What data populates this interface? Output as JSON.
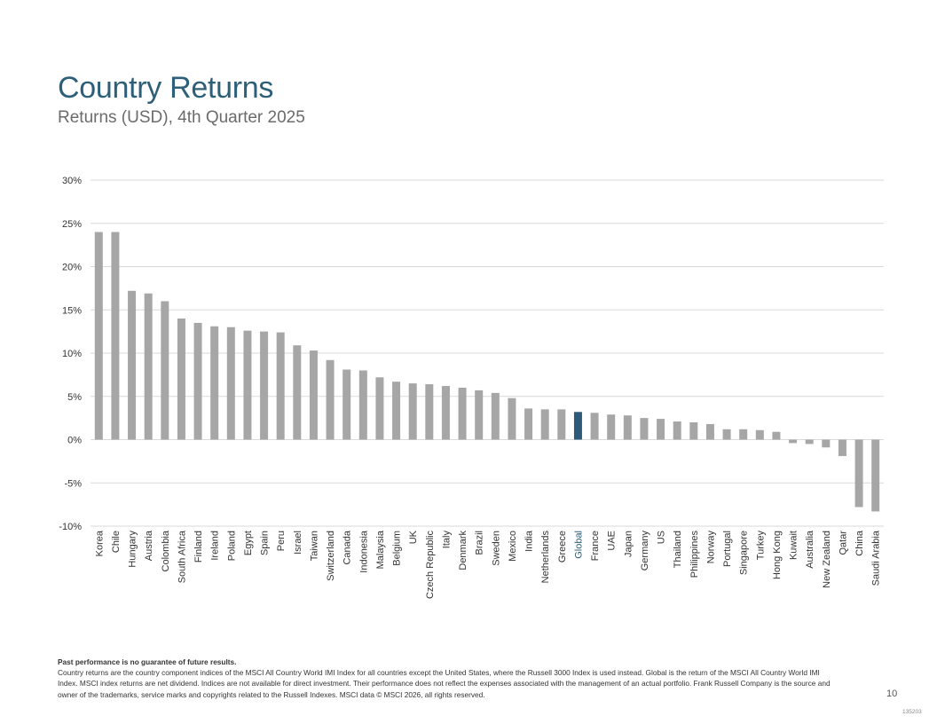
{
  "header": {
    "title": "Country Returns",
    "subtitle": "Returns (USD), 4th Quarter 2025"
  },
  "colors": {
    "bar": "#a6a6a6",
    "highlight": "#2d5a78",
    "grid": "#d9d9d9",
    "title": "#2e5f79"
  },
  "chart_data": {
    "type": "bar",
    "title": "",
    "xlabel": "",
    "ylabel": "",
    "ylim": [
      -10,
      30
    ],
    "yticks": [
      30,
      25,
      20,
      15,
      10,
      5,
      0,
      -5,
      -10
    ],
    "ytick_labels": [
      "30%",
      "25%",
      "20%",
      "15%",
      "10%",
      "5%",
      "0%",
      "-5%",
      "-10%"
    ],
    "grid": true,
    "highlight_category": "Global",
    "categories": [
      "Korea",
      "Chile",
      "Hungary",
      "Austria",
      "Colombia",
      "South Africa",
      "Finland",
      "Ireland",
      "Poland",
      "Egypt",
      "Spain",
      "Peru",
      "Israel",
      "Taiwan",
      "Switzerland",
      "Canada",
      "Indonesia",
      "Malaysia",
      "Belgium",
      "UK",
      "Czech Republic",
      "Italy",
      "Denmark",
      "Brazil",
      "Sweden",
      "Mexico",
      "India",
      "Netherlands",
      "Greece",
      "Global",
      "France",
      "UAE",
      "Japan",
      "Germany",
      "US",
      "Thailand",
      "Philippines",
      "Norway",
      "Portugal",
      "Singapore",
      "Turkey",
      "Hong Kong",
      "Kuwait",
      "Australia",
      "New Zealand",
      "Qatar",
      "China",
      "Saudi Arabia"
    ],
    "values": [
      24.0,
      24.0,
      17.2,
      16.9,
      16.0,
      14.0,
      13.5,
      13.1,
      13.0,
      12.6,
      12.5,
      12.4,
      10.9,
      10.3,
      9.2,
      8.1,
      8.0,
      7.2,
      6.7,
      6.5,
      6.4,
      6.2,
      6.0,
      5.7,
      5.4,
      4.8,
      3.6,
      3.5,
      3.5,
      3.2,
      3.1,
      2.9,
      2.8,
      2.5,
      2.4,
      2.1,
      2.0,
      1.8,
      1.2,
      1.2,
      1.1,
      0.9,
      -0.4,
      -0.5,
      -0.9,
      -1.9,
      -7.8,
      -8.3
    ]
  },
  "footer": {
    "disclaimer": "Past performance is no guarantee of future results.",
    "notes": "Country returns are the country component indices of the MSCI All Country World IMI Index for all countries except the United States, where the Russell 3000 Index is used instead. Global is the return of the MSCI All Country World IMI Index. MSCI index returns are net dividend. Indices are not available for direct investment. Their performance does not reflect the expenses associated with the management of an actual portfolio. Frank Russell Company is the source and owner of the trademarks, service marks and copyrights related to the Russell Indexes. MSCI data © MSCI 2026, all rights reserved.",
    "page_number": "10",
    "doc_code": "135203"
  }
}
